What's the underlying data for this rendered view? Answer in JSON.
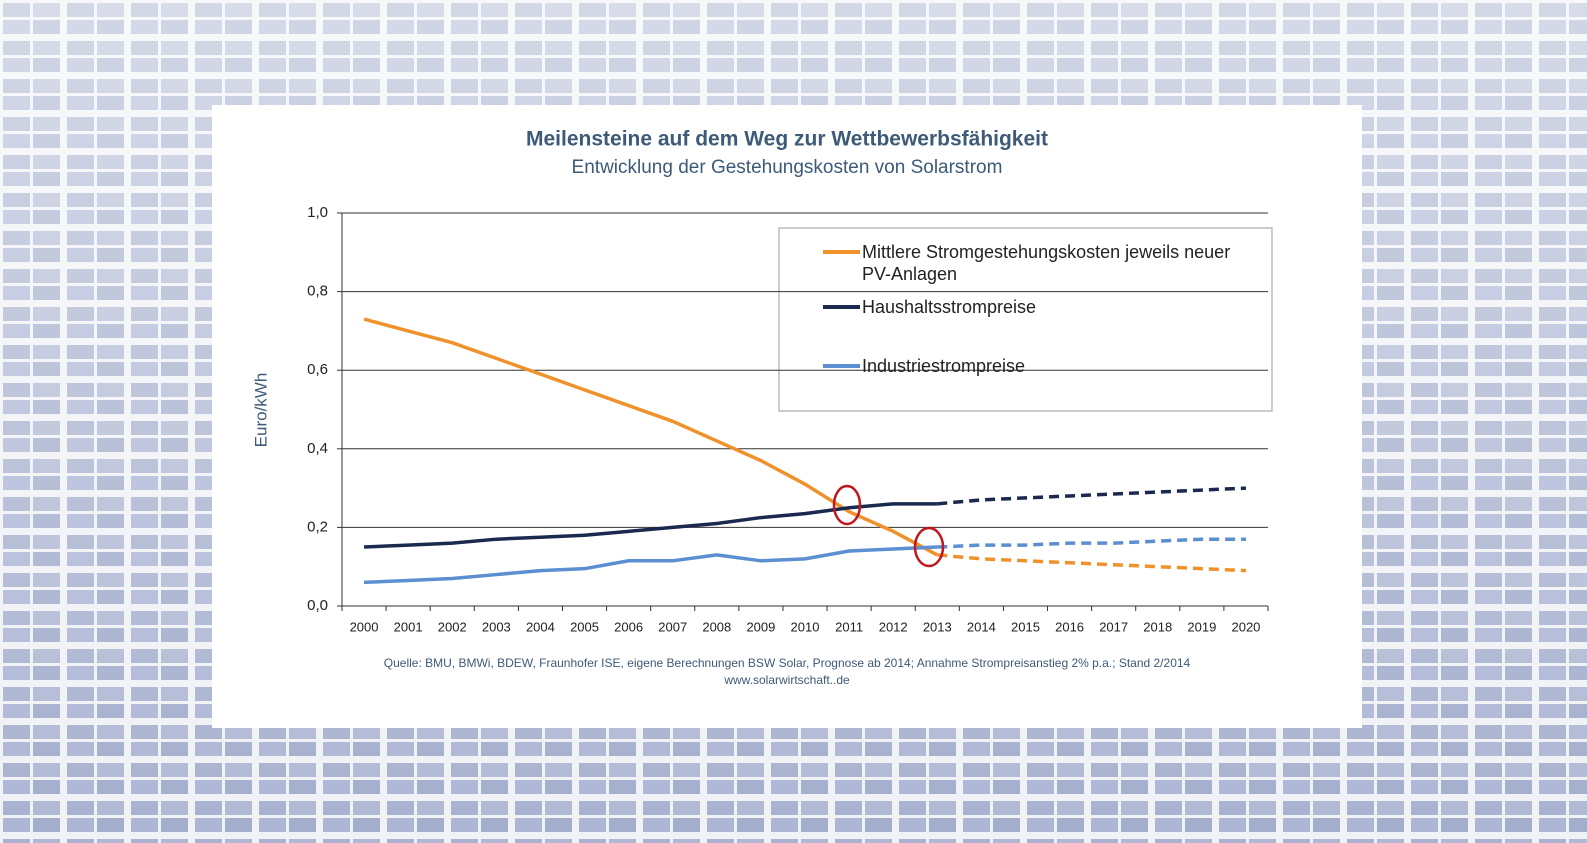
{
  "chart_data": {
    "type": "line",
    "title": "Meilensteine auf dem Weg zur Wettbewerbsfähigkeit",
    "subtitle": "Entwicklung der Gestehungskosten von Solarstrom",
    "y_label": "Euro/kWh",
    "source": "Quelle: BMU, BMWi, BDEW, Fraunhofer ISE, eigene Berechnungen BSW Solar, Prognose ab 2014; Annahme Strompreisanstieg 2% p.a.; Stand 2/2014",
    "url": "www.solarwirtschaft..de",
    "categories": [
      "2000",
      "2001",
      "2002",
      "2003",
      "2004",
      "2005",
      "2006",
      "2007",
      "2008",
      "2009",
      "2010",
      "2011",
      "2012",
      "2013",
      "2014",
      "2015",
      "2016",
      "2017",
      "2018",
      "2019",
      "2020"
    ],
    "dashed_from": "2013",
    "series": [
      {
        "name": "Mittlere Stromgestehungskosten jeweils neuer PV-Anlagen",
        "color": "#f0922b",
        "values": [
          0.73,
          0.7,
          0.67,
          0.63,
          0.59,
          0.55,
          0.51,
          0.47,
          0.42,
          0.37,
          0.31,
          0.24,
          0.19,
          0.13,
          0.12,
          0.115,
          0.11,
          0.105,
          0.1,
          0.095,
          0.09
        ]
      },
      {
        "name": "Haushaltsstrompreise",
        "color": "#1a2a4f",
        "values": [
          0.15,
          0.155,
          0.16,
          0.17,
          0.175,
          0.18,
          0.19,
          0.2,
          0.21,
          0.225,
          0.235,
          0.25,
          0.26,
          0.26,
          0.27,
          0.275,
          0.28,
          0.285,
          0.29,
          0.295,
          0.3
        ]
      },
      {
        "name": "Industriestrompreise",
        "color": "#5b8fd1",
        "values": [
          0.06,
          0.065,
          0.07,
          0.08,
          0.09,
          0.095,
          0.115,
          0.115,
          0.13,
          0.115,
          0.12,
          0.14,
          0.145,
          0.15,
          0.155,
          0.155,
          0.16,
          0.16,
          0.165,
          0.17,
          0.17
        ]
      }
    ],
    "ylim": [
      0,
      1
    ],
    "yticks": [
      {
        "value": 0,
        "label": "0,0"
      },
      {
        "value": 0.2,
        "label": "0,2"
      },
      {
        "value": 0.4,
        "label": "0,4"
      },
      {
        "value": 0.6,
        "label": "0,6"
      },
      {
        "value": 0.8,
        "label": "0,8"
      },
      {
        "value": 1,
        "label": "1,0"
      }
    ],
    "grid": true
  }
}
